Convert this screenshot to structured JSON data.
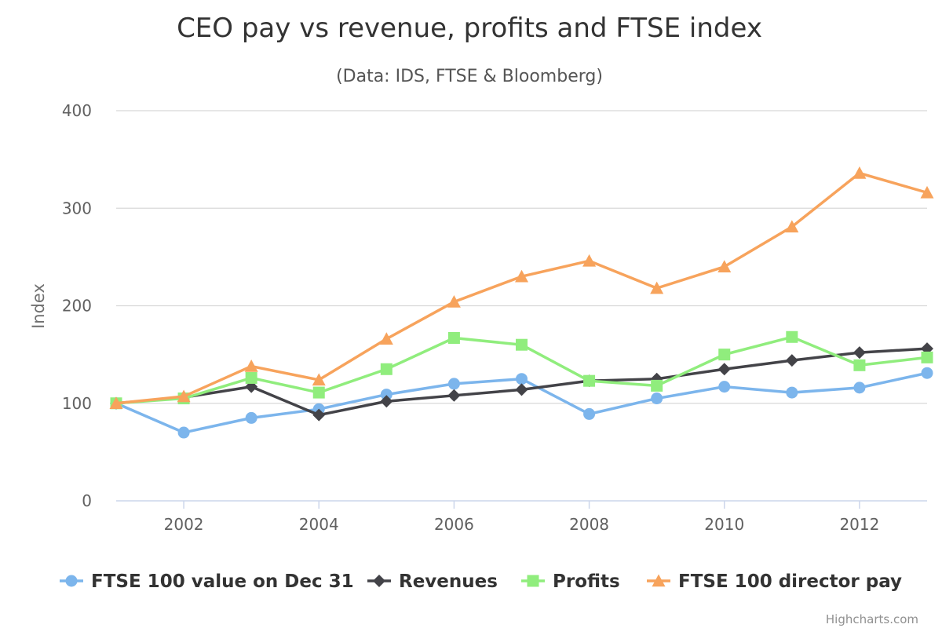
{
  "chart_data": {
    "type": "line",
    "title": "CEO pay vs revenue, profits and FTSE index",
    "subtitle": "(Data: IDS, FTSE & Bloomberg)",
    "xlabel": "",
    "ylabel": "Index",
    "x": [
      2001,
      2002,
      2003,
      2004,
      2005,
      2006,
      2007,
      2008,
      2009,
      2010,
      2011,
      2012,
      2013
    ],
    "x_ticks": [
      "2002",
      "2004",
      "2006",
      "2008",
      "2010",
      "2012"
    ],
    "y_ticks": [
      "0",
      "100",
      "200",
      "300",
      "400"
    ],
    "xlim": [
      2001,
      2013
    ],
    "ylim": [
      0,
      400
    ],
    "grid": true,
    "legend_position": "bottom",
    "series": [
      {
        "name": "FTSE 100 value on Dec 31",
        "color": "#7cb5ec",
        "marker": "circle",
        "values": [
          100,
          70,
          85,
          94,
          109,
          120,
          125,
          89,
          105,
          117,
          111,
          116,
          131
        ]
      },
      {
        "name": "Revenues",
        "color": "#434348",
        "marker": "diamond",
        "values": [
          100,
          106,
          117,
          88,
          102,
          108,
          114,
          123,
          125,
          135,
          144,
          152,
          156
        ]
      },
      {
        "name": "Profits",
        "color": "#90ed7d",
        "marker": "square",
        "values": [
          100,
          105,
          126,
          111,
          135,
          167,
          160,
          123,
          118,
          150,
          168,
          139,
          147
        ]
      },
      {
        "name": "FTSE 100 director pay",
        "color": "#f7a35c",
        "marker": "triangle",
        "values": [
          100,
          107,
          138,
          124,
          166,
          204,
          230,
          246,
          218,
          240,
          281,
          336,
          316
        ]
      }
    ],
    "credits": "Highcharts.com"
  }
}
